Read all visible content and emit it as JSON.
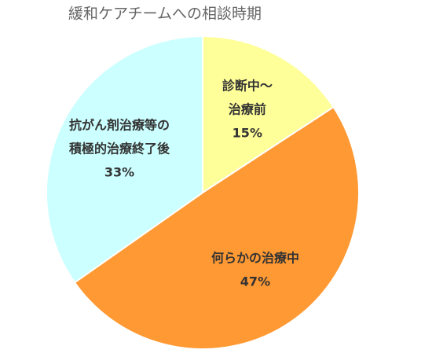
{
  "chart_data": {
    "type": "pie",
    "title": "緩和ケアチームへの相談時期",
    "categories": [
      [
        "診断中〜",
        "治療前"
      ],
      [
        "何らかの治療中"
      ],
      [
        "抗がん剤治療等の",
        "積極的治療終了後"
      ]
    ],
    "values": [
      15,
      47,
      33
    ],
    "value_labels": [
      "15%",
      "47%",
      "33%"
    ],
    "colors": [
      "#ffff99",
      "#ff9933",
      "#ccffff"
    ]
  }
}
